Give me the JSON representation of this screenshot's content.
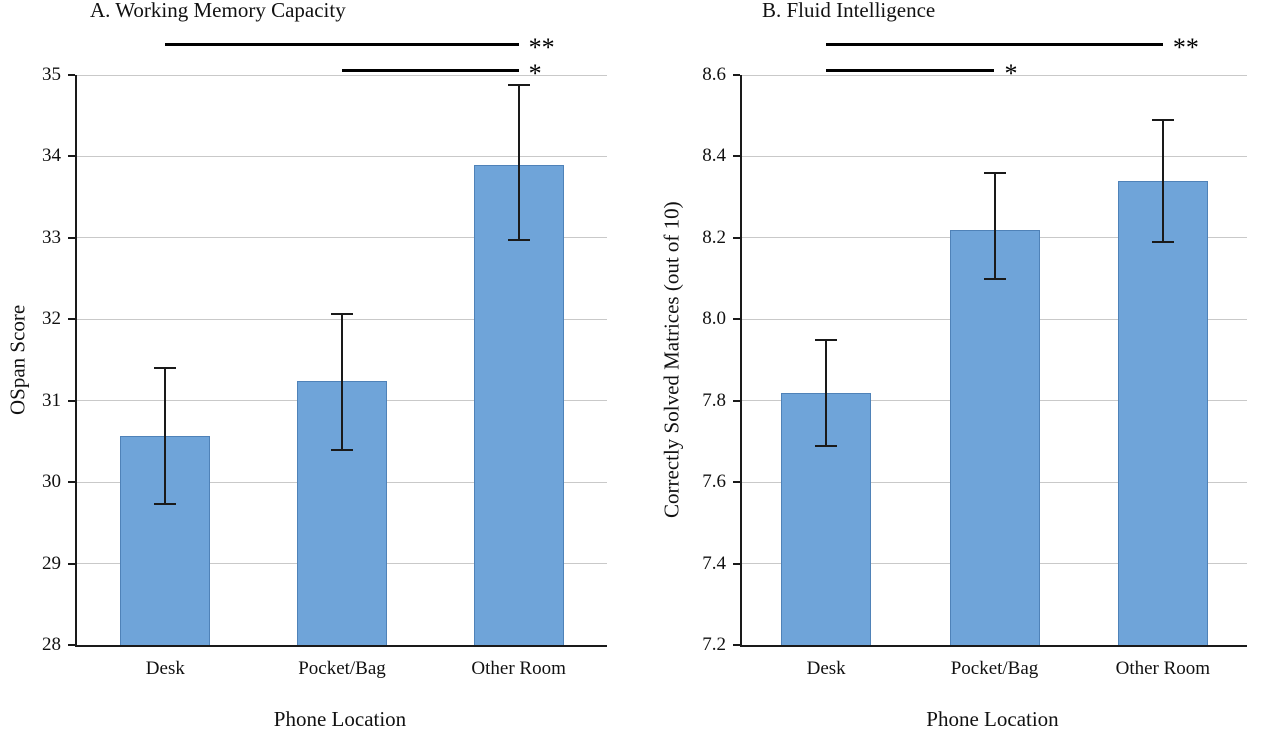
{
  "figure": {
    "background": "#ffffff"
  },
  "style": {
    "bar_fill": "#6fa4d9",
    "bar_border": "#4f82b8",
    "gridline_color": "#c9c9c9",
    "axis_color": "#1a1a1a",
    "error_color": "#1a1a1a",
    "sig_color": "#000000",
    "text_color": "#111111"
  },
  "chart_data": [
    {
      "type": "bar",
      "panel_label": "A",
      "title": "A. Working Memory Capacity",
      "xlabel": "Phone Location",
      "ylabel": "OSpan Score",
      "categories": [
        "Desk",
        "Pocket/Bag",
        "Other Room"
      ],
      "values": [
        30.57,
        31.24,
        33.9
      ],
      "error_low": [
        29.73,
        30.4,
        32.97
      ],
      "error_high": [
        31.4,
        32.07,
        34.88
      ],
      "ylim": [
        28,
        35
      ],
      "yticks": [
        28,
        29,
        30,
        31,
        32,
        33,
        34,
        35
      ],
      "tick_decimals": 0,
      "grid": true,
      "legend": "none",
      "significance": [
        {
          "from": 0,
          "to": 2,
          "label": "**",
          "row": 0
        },
        {
          "from": 1,
          "to": 2,
          "label": "*",
          "row": 1
        }
      ]
    },
    {
      "type": "bar",
      "panel_label": "B",
      "title": "B. Fluid Intelligence",
      "xlabel": "Phone Location",
      "ylabel": "Correctly Solved Matrices (out of 10)",
      "categories": [
        "Desk",
        "Pocket/Bag",
        "Other Room"
      ],
      "values": [
        7.82,
        8.22,
        8.34
      ],
      "error_low": [
        7.69,
        8.1,
        8.19
      ],
      "error_high": [
        7.95,
        8.36,
        8.49
      ],
      "ylim": [
        7.2,
        8.6
      ],
      "yticks": [
        7.2,
        7.4,
        7.6,
        7.8,
        8.0,
        8.2,
        8.4,
        8.6
      ],
      "tick_decimals": 1,
      "grid": true,
      "legend": "none",
      "significance": [
        {
          "from": 0,
          "to": 2,
          "label": "**",
          "row": 0
        },
        {
          "from": 0,
          "to": 1,
          "label": "*",
          "row": 1
        }
      ]
    }
  ]
}
